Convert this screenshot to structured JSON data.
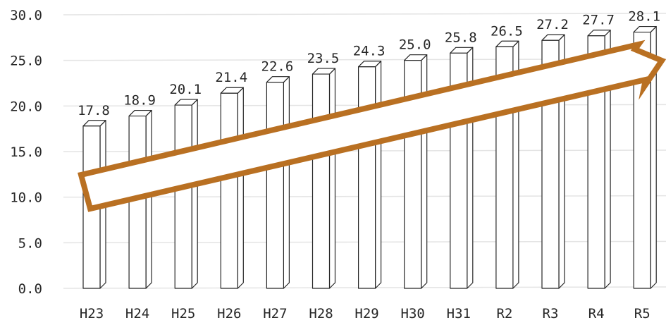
{
  "chart_data": {
    "type": "bar",
    "style": "3d-column-outline",
    "categories": [
      "H23",
      "H24",
      "H25",
      "H26",
      "H27",
      "H28",
      "H29",
      "H30",
      "H31",
      "R2",
      "R3",
      "R4",
      "R5"
    ],
    "values": [
      17.8,
      18.9,
      20.1,
      21.4,
      22.6,
      23.5,
      24.3,
      25.0,
      25.8,
      26.5,
      27.2,
      27.7,
      28.1
    ],
    "value_labels": [
      "17.8",
      "18.9",
      "20.1",
      "21.4",
      "22.6",
      "23.5",
      "24.3",
      "25.0",
      "25.8",
      "26.5",
      "27.2",
      "27.7",
      "28.1"
    ],
    "y_ticks": [
      0,
      5,
      10,
      15,
      20,
      25,
      30
    ],
    "y_tick_labels": [
      "0.0",
      "5.0",
      "10.0",
      "15.0",
      "20.0",
      "25.0",
      "30.0"
    ],
    "ylim": [
      0,
      30
    ],
    "grid": true,
    "legend": "none",
    "colors": {
      "bar_fill": "#ffffff",
      "bar_stroke": "#262626",
      "grid": "#e4e4e4",
      "text": "#262626",
      "arrow_stroke": "#b97022",
      "arrow_fill": "#ffffff"
    },
    "annotations": [
      {
        "type": "arrow",
        "direction": "upward-trend",
        "from_category": "H23",
        "to_category": "R5"
      }
    ]
  }
}
